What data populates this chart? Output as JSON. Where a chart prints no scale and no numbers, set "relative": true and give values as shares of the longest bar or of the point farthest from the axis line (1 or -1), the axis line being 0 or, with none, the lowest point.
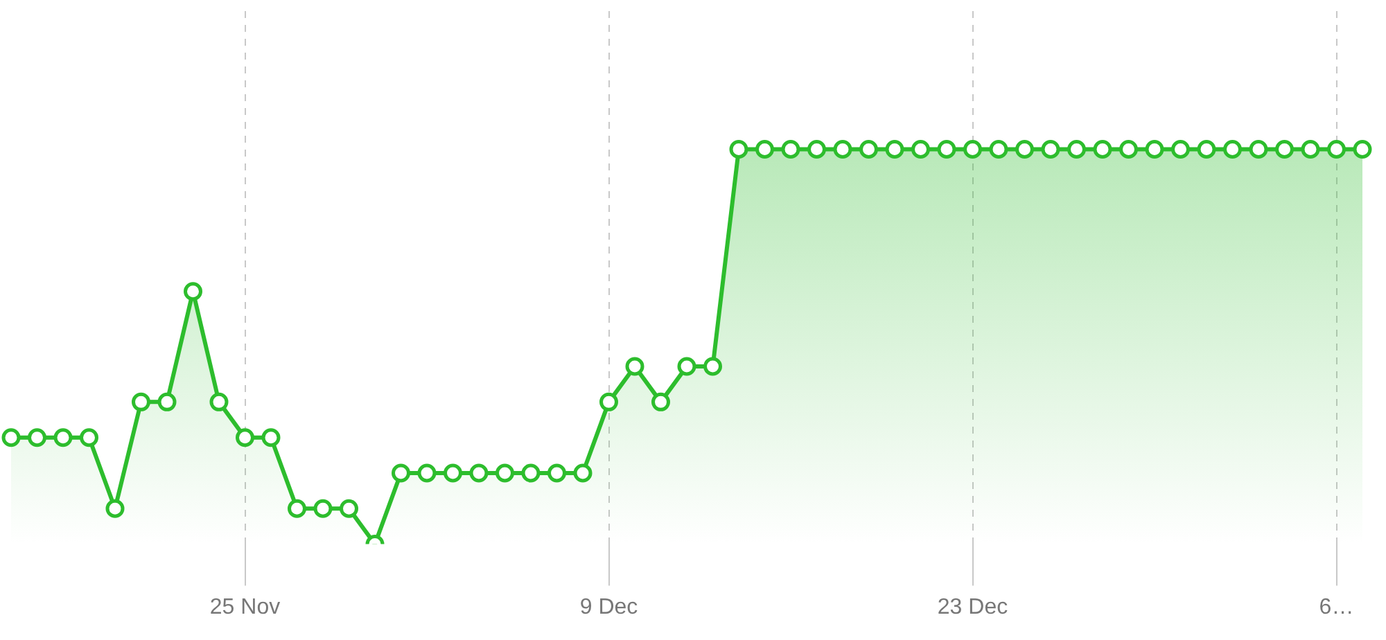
{
  "chart_data": {
    "type": "area",
    "relative": true,
    "categories": [
      null,
      null,
      null,
      null,
      null,
      null,
      null,
      null,
      null,
      "25 Nov",
      null,
      null,
      null,
      null,
      null,
      null,
      null,
      null,
      null,
      null,
      null,
      null,
      null,
      "9 Dec",
      null,
      null,
      null,
      null,
      null,
      null,
      null,
      null,
      null,
      null,
      null,
      null,
      null,
      "23 Dec",
      null,
      null,
      null,
      null,
      null,
      null,
      null,
      null,
      null,
      null,
      null,
      null,
      null,
      "6…",
      null
    ],
    "series": [
      {
        "color": "#2dbd2d",
        "values": [
          0.27,
          0.27,
          0.27,
          0.27,
          0.09,
          0.36,
          0.36,
          0.64,
          0.36,
          0.27,
          0.27,
          0.09,
          0.09,
          0.09,
          0,
          0.18,
          0.18,
          0.18,
          0.18,
          0.18,
          0.18,
          0.18,
          0.18,
          0.36,
          0.45,
          0.36,
          0.45,
          0.45,
          1,
          1,
          1,
          1,
          1,
          1,
          1,
          1,
          1,
          1,
          1,
          1,
          1,
          1,
          1,
          1,
          1,
          1,
          1,
          1,
          1,
          1,
          1,
          1,
          1
        ]
      }
    ],
    "grid": "x",
    "legend": false,
    "marker": "circle",
    "line_style": "solid"
  }
}
